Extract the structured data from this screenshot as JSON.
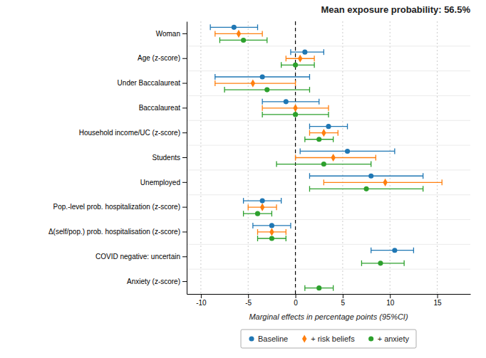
{
  "chart_data": {
    "type": "dot",
    "title": "Mean exposure probability: 56.5%",
    "xlabel": "Marginal effects in percentage points (95%CI)",
    "categories": [
      "Woman",
      "Age (z-score)",
      "Under Baccalaureat",
      "Baccalaureat",
      "Household income/UC (z-score)",
      "Students",
      "Unemployed",
      "Pop.-level prob. hospitalization (z-score)",
      "Δ(self/pop.) prob. hospitalisation (z-score)",
      "COVID negative: uncertain",
      "Anxiety (z-score)"
    ],
    "series": [
      {
        "name": "Baseline",
        "marker": "circle",
        "values": [
          -6.5,
          1.0,
          -3.5,
          -1.0,
          3.5,
          5.5,
          8.0,
          -3.5,
          -2.5,
          10.5,
          null
        ],
        "lo": [
          -9.0,
          -0.5,
          -8.5,
          -3.5,
          1.5,
          0.5,
          1.5,
          -5.5,
          -4.5,
          8.0,
          null
        ],
        "hi": [
          -4.0,
          3.0,
          1.5,
          2.5,
          5.5,
          10.5,
          13.5,
          -1.5,
          -0.5,
          12.5,
          null
        ]
      },
      {
        "name": "+ risk beliefs",
        "marker": "diamond",
        "values": [
          -6.0,
          0.5,
          -4.5,
          0.0,
          3.0,
          4.0,
          9.5,
          -3.5,
          -2.5,
          null,
          null
        ],
        "lo": [
          -8.5,
          -1.0,
          -8.5,
          -3.5,
          1.5,
          0.0,
          3.0,
          -5.0,
          -4.0,
          null,
          null
        ],
        "hi": [
          -3.5,
          2.0,
          0.0,
          3.5,
          4.5,
          8.5,
          15.5,
          -2.0,
          -1.0,
          null,
          null
        ]
      },
      {
        "name": "+ anxiety",
        "marker": "circle",
        "values": [
          -5.5,
          0.0,
          -3.0,
          0.0,
          2.5,
          3.0,
          7.5,
          -4.0,
          -2.5,
          9.0,
          2.5
        ],
        "lo": [
          -8.0,
          -1.5,
          -7.5,
          -3.5,
          1.0,
          -2.0,
          1.5,
          -5.5,
          -4.0,
          7.0,
          1.0
        ],
        "hi": [
          -3.0,
          2.0,
          1.5,
          3.5,
          4.0,
          8.0,
          13.5,
          -2.5,
          -1.0,
          11.5,
          4.0
        ]
      }
    ],
    "xlim": [
      -11.5,
      18.5
    ],
    "xticks": [
      -10,
      -5,
      0,
      5,
      10,
      15
    ],
    "reference_line": 0,
    "grid": true,
    "legend": "bottom"
  }
}
